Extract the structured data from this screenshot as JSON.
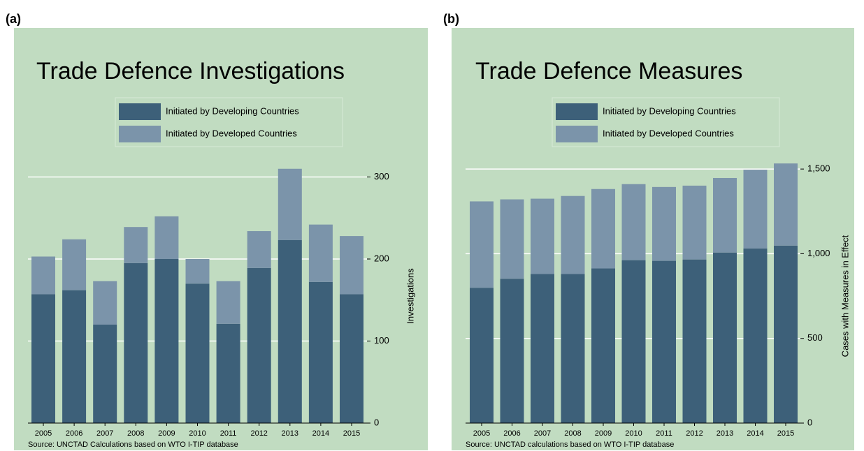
{
  "chart_data": [
    {
      "type": "bar",
      "stacked": true,
      "label": "(a)",
      "title": "Trade Defence Investigations",
      "y_label": "Investigations",
      "source": "Source: UNCTAD Calculations based on WTO I-TIP database",
      "categories": [
        "2005",
        "2006",
        "2007",
        "2008",
        "2009",
        "2010",
        "2011",
        "2012",
        "2013",
        "2014",
        "2015"
      ],
      "series": [
        {
          "name": "Initiated by Developing Countries",
          "color": "#3d6079",
          "values": [
            157,
            162,
            120,
            195,
            200,
            170,
            121,
            189,
            223,
            172,
            157
          ]
        },
        {
          "name": "Initiated by Developed Countries",
          "color": "#7b94aa",
          "values": [
            46,
            62,
            53,
            44,
            52,
            30,
            52,
            45,
            87,
            70,
            71
          ]
        }
      ],
      "ylim": [
        0,
        320
      ],
      "yticks": [
        0,
        100,
        200,
        300
      ],
      "grid": true,
      "legend": "top"
    },
    {
      "type": "bar",
      "stacked": true,
      "label": "(b)",
      "title": "Trade Defence Measures",
      "y_label": "Cases with Measures in Effect",
      "source": "Source: UNCTAD calculations based on WTO I-TIP database",
      "categories": [
        "2005",
        "2006",
        "2007",
        "2008",
        "2009",
        "2010",
        "2011",
        "2012",
        "2013",
        "2014",
        "2015"
      ],
      "series": [
        {
          "name": "Initiated by Developing Countries",
          "color": "#3d6079",
          "values": [
            799,
            852,
            880,
            880,
            913,
            962,
            958,
            966,
            1007,
            1031,
            1048
          ]
        },
        {
          "name": "Initiated by Developed Countries",
          "color": "#7b94aa",
          "values": [
            510,
            469,
            445,
            461,
            469,
            449,
            436,
            436,
            440,
            465,
            485
          ]
        }
      ],
      "ylim": [
        0,
        1550
      ],
      "yticks": [
        0,
        500,
        {
          "value": 1000,
          "label": "1,000"
        },
        {
          "value": 1500,
          "label": "1,500"
        }
      ],
      "grid": true,
      "legend": "top"
    }
  ]
}
